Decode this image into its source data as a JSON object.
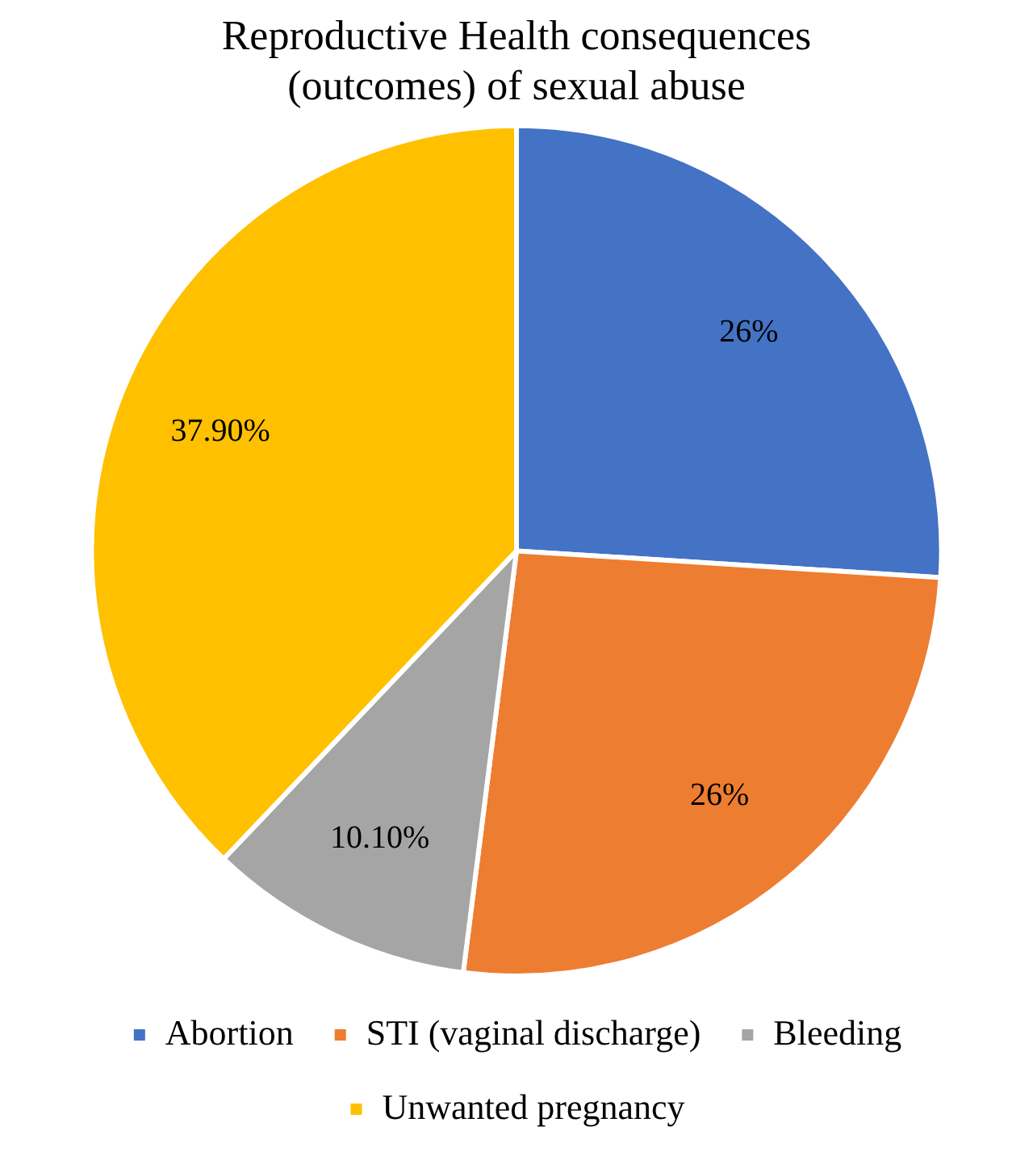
{
  "chart_data": {
    "type": "pie",
    "title": "Reproductive Health consequences (outcomes) of sexual abuse",
    "categories": [
      "Abortion",
      "STI (vaginal discharge)",
      "Bleeding",
      "Unwanted pregnancy"
    ],
    "values": [
      26,
      26,
      10.1,
      37.9
    ],
    "value_labels": [
      "26%",
      "26%",
      "10.10%",
      "37.90%"
    ],
    "colors": [
      "#4472c4",
      "#ed7d31",
      "#a5a5a5",
      "#ffc000"
    ],
    "legend": "bottom"
  }
}
